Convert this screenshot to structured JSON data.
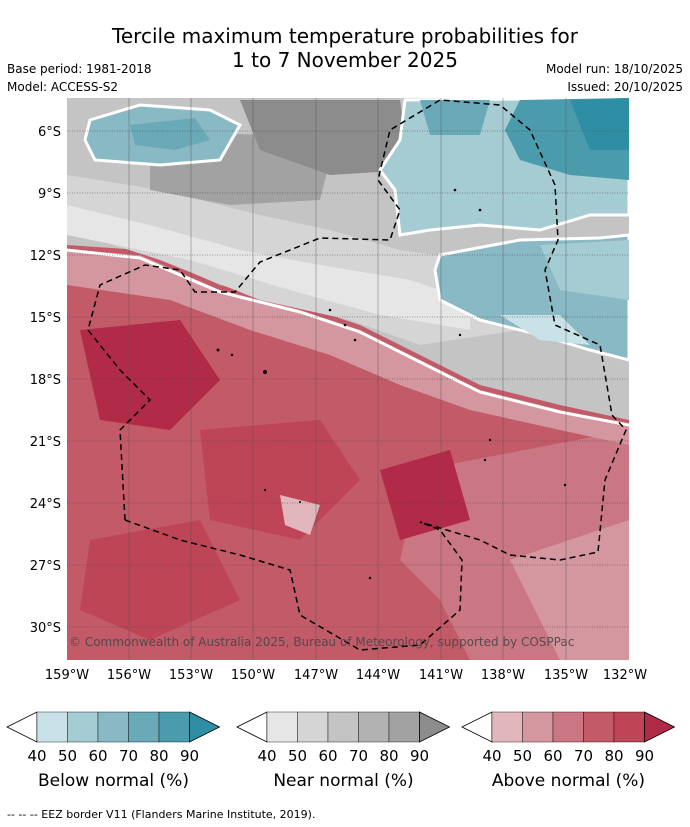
{
  "title_line1": "Tercile maximum temperature probabilities for",
  "title_line2": "1 to 7 November 2025",
  "base_period": "Base period: 1981-2018",
  "model": "Model: ACCESS-S2",
  "model_run": "Model run: 18/10/2025",
  "issued": "Issued: 20/10/2025",
  "copyright": "© Commonwealth of Australia 2025, Bureau of Meteorology, supported by COSPPac",
  "lat_ticks": [
    "6°S",
    "9°S",
    "12°S",
    "15°S",
    "18°S",
    "21°S",
    "24°S",
    "27°S",
    "30°S"
  ],
  "lon_ticks": [
    "159°W",
    "156°W",
    "153°W",
    "150°W",
    "147°W",
    "144°W",
    "141°W",
    "138°W",
    "135°W",
    "132°W"
  ],
  "colorbars": [
    {
      "label": "Below normal (%)",
      "ticks": [
        "40",
        "50",
        "60",
        "70",
        "80",
        "90"
      ],
      "colors": [
        "#c9e2e8",
        "#a5cbd3",
        "#88b9c4",
        "#6aaab8",
        "#4a9cac",
        "#2e8ea4"
      ]
    },
    {
      "label": "Near normal (%)",
      "ticks": [
        "40",
        "50",
        "60",
        "70",
        "80",
        "90"
      ],
      "colors": [
        "#e6e6e6",
        "#d5d5d5",
        "#c4c4c4",
        "#b2b2b2",
        "#a2a2a2",
        "#8c8c8c"
      ]
    },
    {
      "label": "Above normal (%)",
      "ticks": [
        "40",
        "50",
        "60",
        "70",
        "80",
        "90"
      ],
      "colors": [
        "#e1b6bd",
        "#d4969f",
        "#ca7783",
        "#c35a68",
        "#bd4556",
        "#b12a47"
      ]
    }
  ],
  "footnote": "--  --  -- EEZ border V11 (Flanders Marine Institute, 2019)."
}
